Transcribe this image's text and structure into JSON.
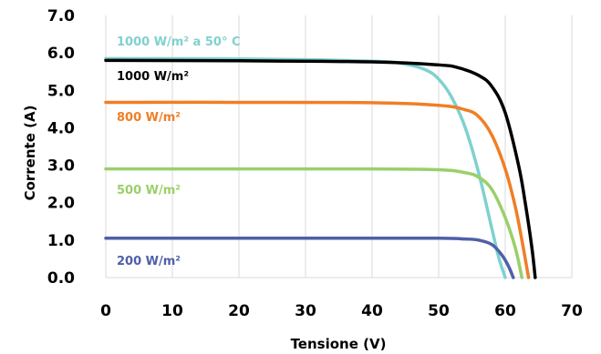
{
  "chart_data": {
    "type": "line",
    "xlabel": "Tensione (V)",
    "ylabel": "Corrente (A)",
    "xlim": [
      0,
      70
    ],
    "ylim": [
      0,
      7
    ],
    "x_ticks": [
      "0",
      "10",
      "20",
      "30",
      "40",
      "50",
      "60",
      "70"
    ],
    "y_ticks": [
      "0.0",
      "1.0",
      "2.0",
      "3.0",
      "4.0",
      "5.0",
      "6.0",
      "7.0"
    ],
    "grid": "vertical",
    "legend": "none (labels placed next to curves, left side)",
    "series": [
      {
        "name": "1000 W/m² a 50° C",
        "color": "#7fd1cf",
        "x": [
          0,
          20,
          40,
          45,
          48,
          50,
          52,
          54,
          56,
          58,
          59,
          60
        ],
        "y": [
          5.85,
          5.84,
          5.78,
          5.7,
          5.55,
          5.3,
          4.8,
          4.0,
          2.8,
          1.3,
          0.55,
          0.0
        ]
      },
      {
        "name": "1000 W/m²",
        "color": "#000000",
        "x": [
          0,
          20,
          40,
          50,
          53,
          56,
          58,
          60,
          62,
          63,
          64,
          64.5
        ],
        "y": [
          5.8,
          5.79,
          5.76,
          5.68,
          5.6,
          5.4,
          5.1,
          4.4,
          3.0,
          2.0,
          0.8,
          0.0
        ]
      },
      {
        "name": "800 W/m²",
        "color": "#f07e26",
        "x": [
          0,
          20,
          40,
          50,
          54,
          56,
          58,
          60,
          61.5,
          62.5,
          63.5
        ],
        "y": [
          4.68,
          4.68,
          4.67,
          4.6,
          4.48,
          4.3,
          3.8,
          2.9,
          1.9,
          1.0,
          0.0
        ]
      },
      {
        "name": "500 W/m²",
        "color": "#9bcf6a",
        "x": [
          0,
          20,
          40,
          50,
          54,
          56,
          58,
          60,
          61.5,
          62.5
        ],
        "y": [
          2.9,
          2.9,
          2.9,
          2.88,
          2.8,
          2.68,
          2.35,
          1.6,
          0.8,
          0.0
        ]
      },
      {
        "name": "200 W/m²",
        "color": "#4f5fa8",
        "x": [
          0,
          20,
          40,
          50,
          54,
          56,
          58,
          59.5,
          60.5,
          61.2
        ],
        "y": [
          1.05,
          1.05,
          1.05,
          1.05,
          1.03,
          1.0,
          0.88,
          0.6,
          0.3,
          0.0
        ]
      }
    ]
  }
}
